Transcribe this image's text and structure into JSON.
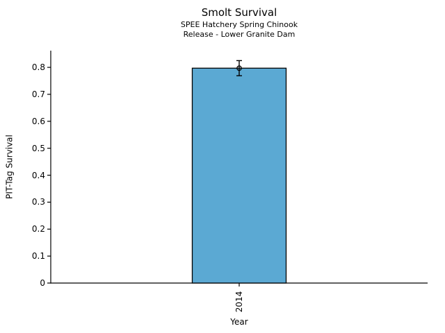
{
  "header": {
    "title": "Smolt Survival",
    "subtitle1": "SPEE Hatchery Spring Chinook",
    "subtitle2": "Release - Lower Granite Dam"
  },
  "chart_data": {
    "type": "bar",
    "title": "Smolt Survival",
    "subtitle": [
      "SPEE Hatchery Spring Chinook",
      "Release - Lower Granite Dam"
    ],
    "categories": [
      "2014"
    ],
    "series": [
      {
        "name": "PIT-Tag Survival",
        "values": [
          0.797
        ],
        "errors": [
          0.028
        ]
      }
    ],
    "xlabel": "Year",
    "ylabel": "PIT-Tag Survival",
    "ylim": [
      0,
      0.862
    ],
    "yticks": [
      0,
      0.1,
      0.2,
      0.3,
      0.4,
      0.5,
      0.6,
      0.7,
      0.8
    ],
    "ytick_labels": [
      "0",
      "0.1",
      "0.2",
      "0.3",
      "0.4",
      "0.5",
      "0.6",
      "0.7",
      "0.8"
    ],
    "grid": false,
    "legend_position": "none",
    "error_marker": "open-circle",
    "colors": {
      "bar_fill": "#5BA9D3",
      "bar_edge": "#000000",
      "error_bar": "#000000",
      "axis": "#000000",
      "text": "#000000",
      "background": "#ffffff"
    }
  }
}
